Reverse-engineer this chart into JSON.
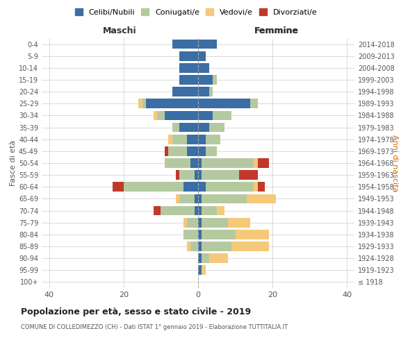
{
  "age_groups": [
    "100+",
    "95-99",
    "90-94",
    "85-89",
    "80-84",
    "75-79",
    "70-74",
    "65-69",
    "60-64",
    "55-59",
    "50-54",
    "45-49",
    "40-44",
    "35-39",
    "30-34",
    "25-29",
    "20-24",
    "15-19",
    "10-14",
    "5-9",
    "0-4"
  ],
  "birth_years": [
    "≤ 1918",
    "1919-1923",
    "1924-1928",
    "1929-1933",
    "1934-1938",
    "1939-1943",
    "1944-1948",
    "1949-1953",
    "1954-1958",
    "1959-1963",
    "1964-1968",
    "1969-1973",
    "1974-1978",
    "1979-1983",
    "1984-1988",
    "1989-1993",
    "1994-1998",
    "1999-2003",
    "2004-2008",
    "2009-2013",
    "2014-2018"
  ],
  "maschi": {
    "celibi": [
      0,
      0,
      0,
      0,
      0,
      0,
      1,
      1,
      4,
      1,
      2,
      3,
      3,
      5,
      9,
      14,
      7,
      5,
      5,
      5,
      7
    ],
    "coniugati": [
      0,
      0,
      0,
      2,
      4,
      3,
      9,
      4,
      16,
      4,
      7,
      5,
      4,
      2,
      2,
      1,
      0,
      0,
      0,
      0,
      0
    ],
    "vedovi": [
      0,
      0,
      0,
      1,
      0,
      1,
      0,
      1,
      0,
      0,
      0,
      0,
      1,
      0,
      1,
      1,
      0,
      0,
      0,
      0,
      0
    ],
    "divorziati": [
      0,
      0,
      0,
      0,
      0,
      0,
      2,
      0,
      3,
      1,
      0,
      1,
      0,
      0,
      0,
      0,
      0,
      0,
      0,
      0,
      0
    ]
  },
  "femmine": {
    "nubili": [
      0,
      1,
      1,
      1,
      1,
      1,
      1,
      1,
      2,
      1,
      1,
      2,
      2,
      3,
      4,
      14,
      3,
      4,
      3,
      2,
      5
    ],
    "coniugate": [
      0,
      0,
      2,
      8,
      9,
      7,
      4,
      12,
      13,
      10,
      14,
      3,
      4,
      4,
      5,
      2,
      1,
      1,
      0,
      0,
      0
    ],
    "vedove": [
      0,
      1,
      5,
      10,
      9,
      6,
      2,
      8,
      1,
      0,
      1,
      0,
      0,
      0,
      0,
      0,
      0,
      0,
      0,
      0,
      0
    ],
    "divorziate": [
      0,
      0,
      0,
      0,
      0,
      0,
      0,
      0,
      2,
      5,
      3,
      0,
      0,
      0,
      0,
      0,
      0,
      0,
      0,
      0,
      0
    ]
  },
  "colors": {
    "celibi": "#3a6ea5",
    "coniugati": "#b5c9a0",
    "vedovi": "#f5c97a",
    "divorziati": "#c0392b"
  },
  "xlim": 42,
  "title": "Popolazione per età, sesso e stato civile - 2019",
  "subtitle": "COMUNE DI COLLEDIMEZZO (CH) - Dati ISTAT 1° gennaio 2019 - Elaborazione TUTTITALIA.IT",
  "ylabel_left": "Fasce di età",
  "ylabel_right": "Anni di nascita",
  "xlabel_left": "Maschi",
  "xlabel_right": "Femmine",
  "legend_labels": [
    "Celibi/Nubili",
    "Coniugati/e",
    "Vedovi/e",
    "Divorziati/e"
  ],
  "background_color": "#ffffff",
  "grid_color": "#cccccc"
}
